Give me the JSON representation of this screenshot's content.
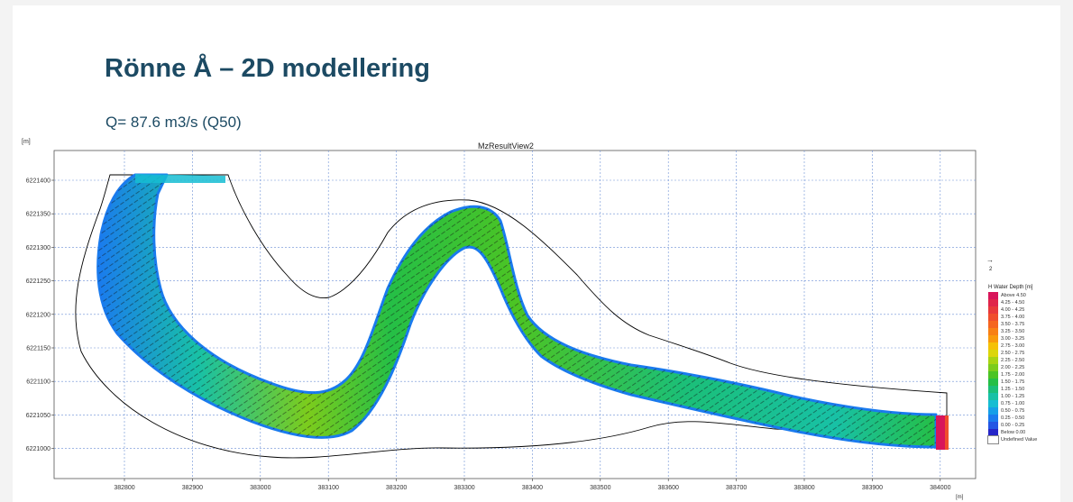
{
  "slide": {
    "title": "Rönne Å – 2D modellering",
    "subtitle": "Q= 87.6 m3/s (Q50)"
  },
  "plot": {
    "view_title": "MzResultView2",
    "y_unit": "[m]",
    "x_unit": "[m]",
    "y_ticks": [
      "6221400",
      "6221350",
      "6221300",
      "6221250",
      "6221200",
      "6221150",
      "6221100",
      "6221050",
      "6221000"
    ],
    "x_ticks": [
      "382800",
      "382900",
      "383000",
      "383100",
      "383200",
      "383300",
      "383400",
      "383500",
      "383600",
      "383700",
      "383800",
      "383900",
      "384000"
    ],
    "grid": true
  },
  "vector_scale": {
    "arrow": "→",
    "value": "2"
  },
  "legend": {
    "title": "H Water Depth [m]",
    "items": [
      {
        "label": "Above 4.50",
        "color": "#d8155a"
      },
      {
        "label": "4.25 - 4.50",
        "color": "#e0254a"
      },
      {
        "label": "4.00 - 4.25",
        "color": "#e8393a"
      },
      {
        "label": "3.75 - 4.00",
        "color": "#f04e2c"
      },
      {
        "label": "3.50 - 3.75",
        "color": "#f5651f"
      },
      {
        "label": "3.25 - 3.50",
        "color": "#f88014"
      },
      {
        "label": "3.00 - 3.25",
        "color": "#f99a0c"
      },
      {
        "label": "2.75 - 3.00",
        "color": "#f5c106"
      },
      {
        "label": "2.50 - 2.75",
        "color": "#dcd60a"
      },
      {
        "label": "2.25 - 2.50",
        "color": "#a8d412"
      },
      {
        "label": "2.00 - 2.25",
        "color": "#7ccc1c"
      },
      {
        "label": "1.75 - 2.00",
        "color": "#4cc424"
      },
      {
        "label": "1.50 - 1.75",
        "color": "#25bf46"
      },
      {
        "label": "1.25 - 1.50",
        "color": "#1bbf78"
      },
      {
        "label": "1.00 - 1.25",
        "color": "#18c1a6"
      },
      {
        "label": "0.75 - 1.00",
        "color": "#16bdd2"
      },
      {
        "label": "0.50 - 0.75",
        "color": "#159fe8"
      },
      {
        "label": "0.25 - 0.50",
        "color": "#1a7bee"
      },
      {
        "label": "0.00 - 0.25",
        "color": "#2356e4"
      },
      {
        "label": "Below 0.00",
        "color": "#2626c8"
      },
      {
        "label": "Undefined Value",
        "color": "#ffffff"
      }
    ]
  }
}
